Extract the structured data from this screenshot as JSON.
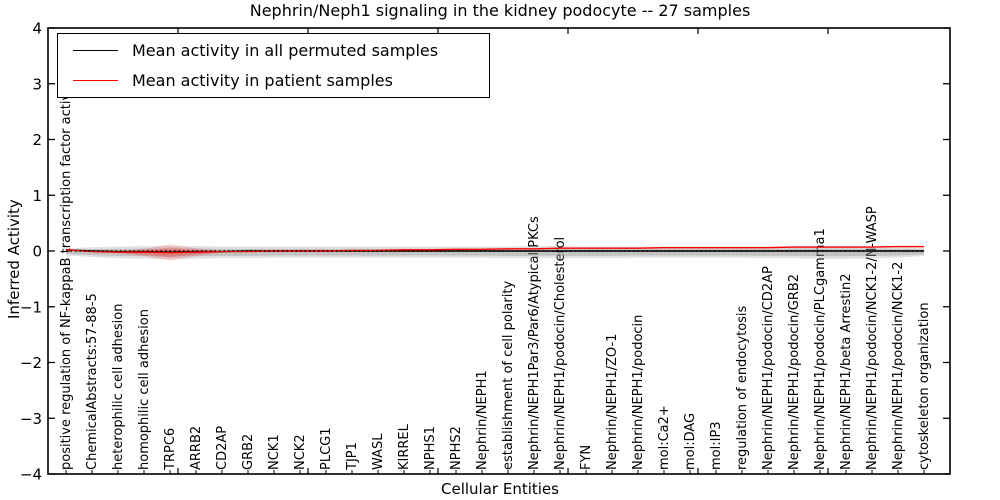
{
  "chart_data": {
    "type": "line",
    "title": "Nephrin/Neph1 signaling in the kidney podocyte -- 27 samples",
    "xlabel": "Cellular Entities",
    "ylabel": "Inferred Activity",
    "ylim": [
      -4,
      4
    ],
    "yticks": [
      -4,
      -3,
      -2,
      -1,
      0,
      1,
      2,
      3,
      4
    ],
    "grid": false,
    "legend_position": "upper left",
    "zero_line": {
      "y": 0,
      "style": "dotted",
      "color": "#000000"
    },
    "categories": [
      "positive regulation of NF-kappaB transcription factor activity",
      "ChemicalAbstracts:57-88-5",
      "heterophilic cell adhesion",
      "homophilic cell adhesion",
      "TRPC6",
      "ARRB2",
      "CD2AP",
      "GRB2",
      "NCK1",
      "NCK2",
      "PLCG1",
      "TJP1",
      "WASL",
      "KIRREL",
      "NPHS1",
      "NPHS2",
      "Nephrin/NEPH1",
      "establishment of cell polarity",
      "Nephrin/NEPH1Par3/Par6/Atypical PKCs",
      "Nephrin/NEPH1/podocin/Cholesterol",
      "FYN",
      "Nephrin/NEPH1/ZO-1",
      "Nephrin/NEPH1/podocin",
      "mol:Ca2+",
      "mol:DAG",
      "mol:IP3",
      "regulation of endocytosis",
      "Nephrin/NEPH1/podocin/CD2AP",
      "Nephrin/NEPH1/podocin/GRB2",
      "Nephrin/NEPH1/podocin/PLCgamma1",
      "Nephrin/NEPH1/beta Arrestin2",
      "Nephrin/NEPH1/podocin/NCK1-2/N-WASP",
      "Nephrin/NEPH1/podocin/NCK1-2",
      "cytoskeleton organization"
    ],
    "series": [
      {
        "name": "Mean activity in all permuted samples",
        "color": "#000000",
        "values": [
          0.02,
          0,
          -0.01,
          -0.01,
          -0.02,
          -0.01,
          -0.01,
          0,
          0,
          0,
          0,
          0,
          0,
          0,
          0,
          0,
          0,
          0,
          0,
          0,
          0,
          0,
          0,
          0,
          0,
          0,
          0,
          0,
          0,
          0,
          0,
          0,
          0,
          0
        ]
      },
      {
        "name": "Mean activity in patient samples",
        "color": "#ff0000",
        "values": [
          0.02,
          -0.01,
          -0.02,
          -0.02,
          -0.03,
          -0.02,
          -0.01,
          -0.01,
          0,
          0,
          0,
          0.01,
          0.01,
          0.02,
          0.02,
          0.03,
          0.03,
          0.04,
          0.04,
          0.05,
          0.05,
          0.05,
          0.05,
          0.06,
          0.06,
          0.06,
          0.06,
          0.06,
          0.07,
          0.07,
          0.07,
          0.07,
          0.08,
          0.08
        ]
      }
    ],
    "bands": [
      {
        "name": "permuted-samples-range",
        "color": "#8a8a8a",
        "opacity": 0.25,
        "high": [
          0.05,
          0.07,
          0.08,
          0.09,
          0.09,
          0.09,
          0.08,
          0.08,
          0.08,
          0.08,
          0.08,
          0.08,
          0.08,
          0.08,
          0.08,
          0.08,
          0.08,
          0.08,
          0.09,
          0.09,
          0.08,
          0.08,
          0.08,
          0.08,
          0.08,
          0.08,
          0.08,
          0.08,
          0.09,
          0.09,
          0.09,
          0.08,
          0.08,
          0.06
        ],
        "low": [
          -0.08,
          -0.11,
          -0.13,
          -0.14,
          -0.15,
          -0.14,
          -0.13,
          -0.13,
          -0.12,
          -0.12,
          -0.12,
          -0.12,
          -0.12,
          -0.12,
          -0.12,
          -0.12,
          -0.12,
          -0.13,
          -0.13,
          -0.13,
          -0.13,
          -0.13,
          -0.12,
          -0.12,
          -0.12,
          -0.12,
          -0.12,
          -0.13,
          -0.13,
          -0.14,
          -0.14,
          -0.13,
          -0.12,
          -0.09
        ]
      },
      {
        "name": "patient-samples-range",
        "color": "#ff0000",
        "opacity": 0.15,
        "high": [
          0.02,
          -0.01,
          -0.01,
          0.04,
          0.12,
          0.05,
          0,
          -0.01,
          0,
          0,
          0,
          0.01,
          0.01,
          0.02,
          0.02,
          0.03,
          0.03,
          0.04,
          0.04,
          0.05,
          0.05,
          0.05,
          0.05,
          0.06,
          0.06,
          0.06,
          0.06,
          0.06,
          0.07,
          0.07,
          0.07,
          0.07,
          0.08,
          0.08
        ],
        "low": [
          0.02,
          -0.01,
          -0.04,
          -0.09,
          -0.17,
          -0.09,
          -0.03,
          -0.01,
          0,
          0,
          0,
          0.01,
          0.01,
          0.02,
          0.02,
          0.03,
          0.03,
          0.04,
          0.04,
          0.05,
          0.05,
          0.05,
          0.05,
          0.06,
          0.06,
          0.06,
          0.06,
          0.06,
          0.07,
          0.07,
          0.07,
          0.07,
          0.08,
          0.08
        ]
      }
    ]
  }
}
